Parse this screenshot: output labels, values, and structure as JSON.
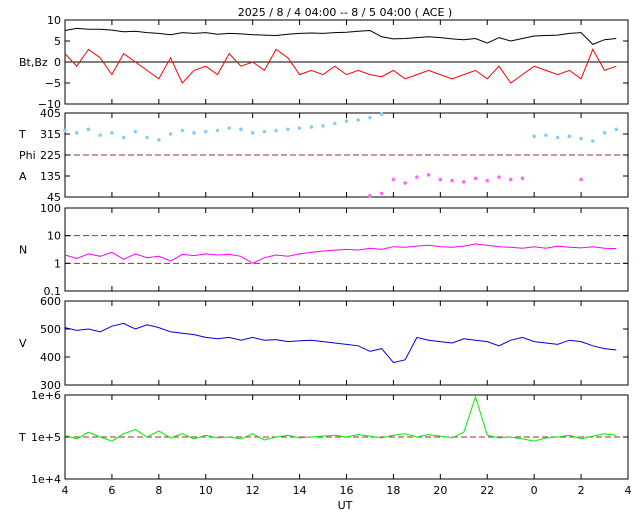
{
  "title": "2025 /  8 /  4   04:00 -- 8 /  5   04:00 ( ACE )",
  "xlabel": "UT",
  "colors": {
    "bt": "#000000",
    "bz": "#ff0000",
    "theta": "#87cefa",
    "phi": "#ff66ff",
    "density": "#ff00ff",
    "speed": "#0000dd",
    "temperature": "#00ee00",
    "reference": "#993333"
  },
  "chart_data": [
    {
      "type": "line",
      "panel": "magnetic-field",
      "ylabel": "Bt,Bz",
      "ylim": [
        -10,
        10
      ],
      "yticks": [
        "10",
        "5",
        "0",
        "−5",
        "−10"
      ],
      "ytick_values": [
        10,
        5,
        0,
        -5,
        -10
      ],
      "xticks": [
        "4",
        "6",
        "8",
        "10",
        "12",
        "14",
        "16",
        "18",
        "20",
        "22",
        "0",
        "2",
        "4"
      ],
      "xlim": [
        4,
        28
      ],
      "reference_lines": [
        0
      ],
      "series": [
        {
          "key": "bt",
          "x": [
            4,
            4.5,
            5,
            5.5,
            6,
            6.5,
            7,
            7.5,
            8,
            8.5,
            9,
            9.5,
            10,
            10.5,
            11,
            11.5,
            12,
            12.5,
            13,
            13.5,
            14,
            14.5,
            15,
            15.5,
            16,
            16.5,
            17,
            17.5,
            18,
            18.5,
            19,
            19.5,
            20,
            20.5,
            21,
            21.5,
            22,
            22.5,
            23,
            23.5,
            24,
            24.5,
            25,
            25.5,
            26,
            26.5,
            27,
            27.5
          ],
          "y": [
            7.5,
            8,
            7.8,
            7.8,
            7.6,
            7.2,
            7.3,
            7,
            6.8,
            6.5,
            7,
            6.8,
            7,
            6.6,
            6.8,
            6.7,
            6.5,
            6.4,
            6.3,
            6.6,
            6.8,
            6.9,
            6.8,
            7,
            7.1,
            7.3,
            7.5,
            6,
            5.5,
            5.6,
            5.8,
            6,
            5.8,
            5.5,
            5.3,
            5.6,
            4.5,
            5.8,
            5,
            5.6,
            6.2,
            6.3,
            6.4,
            6.8,
            7,
            4.2,
            5.3,
            5.6
          ]
        },
        {
          "key": "bz",
          "x": [
            4,
            4.5,
            5,
            5.5,
            6,
            6.5,
            7,
            7.5,
            8,
            8.5,
            9,
            9.5,
            10,
            10.5,
            11,
            11.5,
            12,
            12.5,
            13,
            13.5,
            14,
            14.5,
            15,
            15.5,
            16,
            16.5,
            17,
            17.5,
            18,
            18.5,
            19,
            19.5,
            20,
            20.5,
            21,
            21.5,
            22,
            22.5,
            23,
            23.5,
            24,
            24.5,
            25,
            25.5,
            26,
            26.5,
            27,
            27.5
          ],
          "y": [
            2,
            -1,
            3,
            1,
            -3,
            2,
            0,
            -2,
            -4,
            1,
            -5,
            -2,
            -1,
            -3,
            2,
            -1,
            0,
            -2,
            3,
            1,
            -3,
            -2,
            -3,
            -1,
            -3,
            -2,
            -3,
            -3.5,
            -2,
            -4,
            -3,
            -2,
            -3,
            -4,
            -3,
            -2,
            -4,
            -1,
            -5,
            -3,
            -1,
            -2,
            -3,
            -2,
            -4,
            3,
            -2,
            -1
          ]
        }
      ]
    },
    {
      "type": "scatter",
      "panel": "angles",
      "ylabel_top": "T",
      "ylabel_mid": "Phi",
      "ylabel_bottom": "A",
      "ylim": [
        45,
        405
      ],
      "yticks": [
        "405",
        "315",
        "225",
        "135",
        "45"
      ],
      "ytick_values": [
        405,
        315,
        225,
        135,
        45
      ],
      "xticks": [
        "4",
        "6",
        "8",
        "10",
        "12",
        "14",
        "16",
        "18",
        "20",
        "22",
        "0",
        "2",
        "4"
      ],
      "xlim": [
        4,
        28
      ],
      "reference_lines": [
        225
      ],
      "series": [
        {
          "key": "theta",
          "x": [
            4,
            4.5,
            5,
            5.5,
            6,
            6.5,
            7,
            7.5,
            8,
            8.5,
            9,
            9.5,
            10,
            10.5,
            11,
            11.5,
            12,
            12.5,
            13,
            13.5,
            14,
            14.5,
            15,
            15.5,
            16,
            16.5,
            17,
            17.5,
            24,
            24.5,
            25,
            25.5,
            26,
            26.5,
            27,
            27.5
          ],
          "y": [
            330,
            320,
            335,
            310,
            320,
            300,
            325,
            300,
            290,
            315,
            330,
            320,
            325,
            330,
            340,
            335,
            320,
            325,
            330,
            335,
            340,
            345,
            350,
            360,
            370,
            375,
            385,
            400,
            305,
            310,
            300,
            305,
            295,
            285,
            320,
            335
          ]
        },
        {
          "key": "phi",
          "x": [
            17,
            17.5,
            18,
            18.5,
            19,
            19.5,
            20,
            20.5,
            21,
            21.5,
            22,
            22.5,
            23,
            23.5,
            26
          ],
          "y": [
            50,
            60,
            120,
            105,
            130,
            140,
            120,
            115,
            110,
            125,
            115,
            130,
            120,
            125,
            120
          ]
        }
      ]
    },
    {
      "type": "line",
      "panel": "density",
      "ylabel": "N",
      "scale": "log",
      "ylim": [
        0.1,
        100
      ],
      "yticks": [
        "100",
        "10",
        "1",
        "0.1"
      ],
      "ytick_values": [
        100,
        10,
        1,
        0.1
      ],
      "xticks": [
        "4",
        "6",
        "8",
        "10",
        "12",
        "14",
        "16",
        "18",
        "20",
        "22",
        "0",
        "2",
        "4"
      ],
      "xlim": [
        4,
        28
      ],
      "reference_lines": [
        10,
        1
      ],
      "series": [
        {
          "key": "density",
          "x": [
            4,
            4.5,
            5,
            5.5,
            6,
            6.5,
            7,
            7.5,
            8,
            8.5,
            9,
            9.5,
            10,
            10.5,
            11,
            11.5,
            12,
            12.5,
            13,
            13.5,
            14,
            14.5,
            15,
            15.5,
            16,
            16.5,
            17,
            17.5,
            18,
            18.5,
            19,
            19.5,
            20,
            20.5,
            21,
            21.5,
            22,
            22.5,
            23,
            23.5,
            24,
            24.5,
            25,
            25.5,
            26,
            26.5,
            27,
            27.5
          ],
          "y": [
            2,
            1.5,
            2.2,
            1.8,
            2.5,
            1.4,
            2.2,
            1.6,
            1.8,
            1.2,
            2.1,
            1.9,
            2.2,
            2,
            2.1,
            1.8,
            1,
            1.6,
            2,
            1.8,
            2.2,
            2.5,
            2.8,
            3,
            3.2,
            3,
            3.5,
            3.2,
            4,
            3.8,
            4.2,
            4.5,
            4,
            3.8,
            4.2,
            5,
            4.5,
            4,
            3.8,
            3.5,
            4,
            3.5,
            4.2,
            3.8,
            3.6,
            4,
            3.5,
            3.4
          ]
        }
      ]
    },
    {
      "type": "line",
      "panel": "speed",
      "ylabel": "V",
      "ylim": [
        300,
        600
      ],
      "yticks": [
        "600",
        "500",
        "400",
        "300"
      ],
      "ytick_values": [
        600,
        500,
        400,
        300
      ],
      "xticks": [
        "4",
        "6",
        "8",
        "10",
        "12",
        "14",
        "16",
        "18",
        "20",
        "22",
        "0",
        "2",
        "4"
      ],
      "xlim": [
        4,
        28
      ],
      "reference_lines": [],
      "series": [
        {
          "key": "speed",
          "x": [
            4,
            4.5,
            5,
            5.5,
            6,
            6.5,
            7,
            7.5,
            8,
            8.5,
            9,
            9.5,
            10,
            10.5,
            11,
            11.5,
            12,
            12.5,
            13,
            13.5,
            14,
            14.5,
            15,
            15.5,
            16,
            16.5,
            17,
            17.5,
            18,
            18.5,
            19,
            19.5,
            20,
            20.5,
            21,
            21.5,
            22,
            22.5,
            23,
            23.5,
            24,
            24.5,
            25,
            25.5,
            26,
            26.5,
            27,
            27.5
          ],
          "y": [
            505,
            495,
            500,
            490,
            510,
            520,
            500,
            515,
            505,
            490,
            485,
            480,
            470,
            465,
            470,
            460,
            470,
            460,
            462,
            455,
            458,
            460,
            455,
            450,
            445,
            440,
            420,
            430,
            380,
            390,
            470,
            460,
            455,
            450,
            465,
            460,
            455,
            440,
            460,
            470,
            455,
            450,
            445,
            460,
            455,
            440,
            430,
            425
          ]
        }
      ]
    },
    {
      "type": "line",
      "panel": "temperature",
      "ylabel": "T",
      "scale": "log",
      "ylim": [
        10000,
        1000000
      ],
      "yticks": [
        "1e+6",
        "1e+5",
        "1e+4"
      ],
      "ytick_values": [
        1000000,
        100000,
        10000
      ],
      "xticks": [
        "4",
        "6",
        "8",
        "10",
        "12",
        "14",
        "16",
        "18",
        "20",
        "22",
        "0",
        "2",
        "4"
      ],
      "xlim": [
        4,
        28
      ],
      "reference_lines": [
        100000
      ],
      "series": [
        {
          "key": "temperature",
          "x": [
            4,
            4.5,
            5,
            5.5,
            6,
            6.5,
            7,
            7.5,
            8,
            8.5,
            9,
            9.5,
            10,
            10.5,
            11,
            11.5,
            12,
            12.5,
            13,
            13.5,
            14,
            14.5,
            15,
            15.5,
            16,
            16.5,
            17,
            17.5,
            18,
            18.5,
            19,
            19.5,
            20,
            20.5,
            21,
            21.5,
            22,
            22.5,
            23,
            23.5,
            24,
            24.5,
            25,
            25.5,
            26,
            26.5,
            27,
            27.5
          ],
          "y": [
            110000,
            90000,
            130000,
            100000,
            80000,
            120000,
            150000,
            100000,
            140000,
            95000,
            120000,
            90000,
            110000,
            95000,
            100000,
            90000,
            120000,
            85000,
            100000,
            110000,
            95000,
            100000,
            105000,
            110000,
            100000,
            115000,
            105000,
            95000,
            110000,
            120000,
            100000,
            115000,
            105000,
            95000,
            130000,
            900000,
            110000,
            95000,
            100000,
            90000,
            80000,
            95000,
            100000,
            110000,
            90000,
            105000,
            120000,
            110000
          ]
        }
      ]
    }
  ]
}
